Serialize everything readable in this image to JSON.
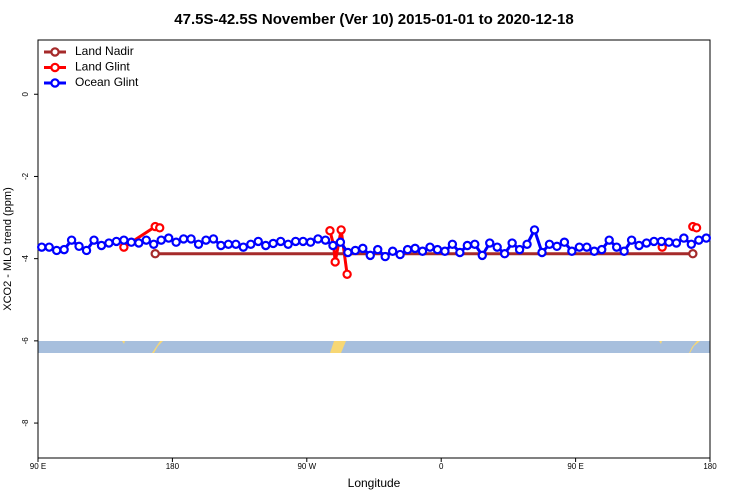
{
  "chart_data": {
    "type": "line",
    "title": "47.5S-42.5S November (Ver 10)   2015-01-01 to 2020-12-18",
    "xlabel": "Longitude",
    "ylabel": "XCO2 - MLO trend (ppm)",
    "xlim": [
      90,
      540
    ],
    "xticks": [
      {
        "value": 90,
        "label": "90 E"
      },
      {
        "value": 180,
        "label": "180"
      },
      {
        "value": 270,
        "label": "90 W"
      },
      {
        "value": 360,
        "label": "0"
      },
      {
        "value": 450,
        "label": "90 E"
      },
      {
        "value": 540,
        "label": "180"
      }
    ],
    "ylim": [
      -8.85,
      1.32
    ],
    "yticks": [
      0,
      -2,
      -4,
      -6,
      -8
    ],
    "legend": "top-left",
    "series": [
      {
        "name": "Land Nadir",
        "color": "#a52a2a",
        "x": [
          168.5,
          528.5
        ],
        "values": [
          -3.88,
          -3.88
        ]
      },
      {
        "name": "Land Glint",
        "color": "#ff0000",
        "x": [
          147.5,
          168.5,
          171.5,
          220,
          285.5,
          288,
          289,
          293,
          297,
          400,
          508,
          520,
          528.5,
          531
        ],
        "values": [
          -3.72,
          -3.22,
          -3.25,
          null,
          -3.32,
          -3.68,
          -4.08,
          -3.3,
          -4.38,
          null,
          -3.72,
          null,
          -3.22,
          -3.25
        ]
      },
      {
        "name": "Ocean Glint",
        "color": "#0000ff",
        "x": [
          92.5,
          97.5,
          102.5,
          107.5,
          112.5,
          117.5,
          122.5,
          127.5,
          132.5,
          137.5,
          142.5,
          147.5,
          152.5,
          157.5,
          162.5,
          167.5,
          172.5,
          177.5,
          182.5,
          187.5,
          192.5,
          197.5,
          202.5,
          207.5,
          212.5,
          217.5,
          222.5,
          227.5,
          232.5,
          237.5,
          242.5,
          247.5,
          252.5,
          257.5,
          262.5,
          267.5,
          272.5,
          277.5,
          282.5,
          287.5,
          292.5,
          297.5,
          302.5,
          307.5,
          312.5,
          317.5,
          322.5,
          327.5,
          332.5,
          337.5,
          342.5,
          347.5,
          352.5,
          357.5,
          362.5,
          367.5,
          372.5,
          377.5,
          382.5,
          387.5,
          392.5,
          397.5,
          402.5,
          407.5,
          412.5,
          417.5,
          422.5,
          427.5,
          432.5,
          437.5,
          442.5,
          447.5,
          452.5,
          457.5,
          462.5,
          467.5,
          472.5,
          477.5,
          482.5,
          487.5,
          492.5,
          497.5,
          502.5,
          507.5,
          512.5,
          517.5,
          522.5,
          527.5,
          532.5,
          537.5
        ],
        "values": [
          -3.72,
          -3.72,
          -3.8,
          -3.78,
          -3.55,
          -3.7,
          -3.8,
          -3.55,
          -3.68,
          -3.62,
          -3.58,
          -3.55,
          -3.6,
          -3.62,
          -3.55,
          -3.65,
          -3.55,
          -3.5,
          -3.6,
          -3.52,
          -3.52,
          -3.65,
          -3.55,
          -3.52,
          -3.68,
          -3.65,
          -3.65,
          -3.72,
          -3.65,
          -3.58,
          -3.68,
          -3.63,
          -3.58,
          -3.65,
          -3.58,
          -3.58,
          -3.6,
          -3.52,
          -3.55,
          -3.68,
          -3.6,
          -3.85,
          -3.8,
          -3.75,
          -3.92,
          -3.78,
          -3.95,
          -3.82,
          -3.9,
          -3.78,
          -3.75,
          -3.82,
          -3.72,
          -3.78,
          -3.82,
          -3.65,
          -3.85,
          -3.68,
          -3.65,
          -3.92,
          -3.62,
          -3.72,
          -3.88,
          -3.62,
          -3.78,
          -3.65,
          -3.3,
          -3.85,
          -3.65,
          -3.7,
          -3.6,
          -3.82,
          -3.72,
          -3.72,
          -3.82,
          -3.78,
          -3.55,
          -3.72,
          -3.82,
          -3.55,
          -3.68,
          -3.62,
          -3.58,
          -3.58,
          -3.6,
          -3.62,
          -3.5,
          -3.65,
          -3.55,
          -3.5
        ]
      }
    ]
  }
}
